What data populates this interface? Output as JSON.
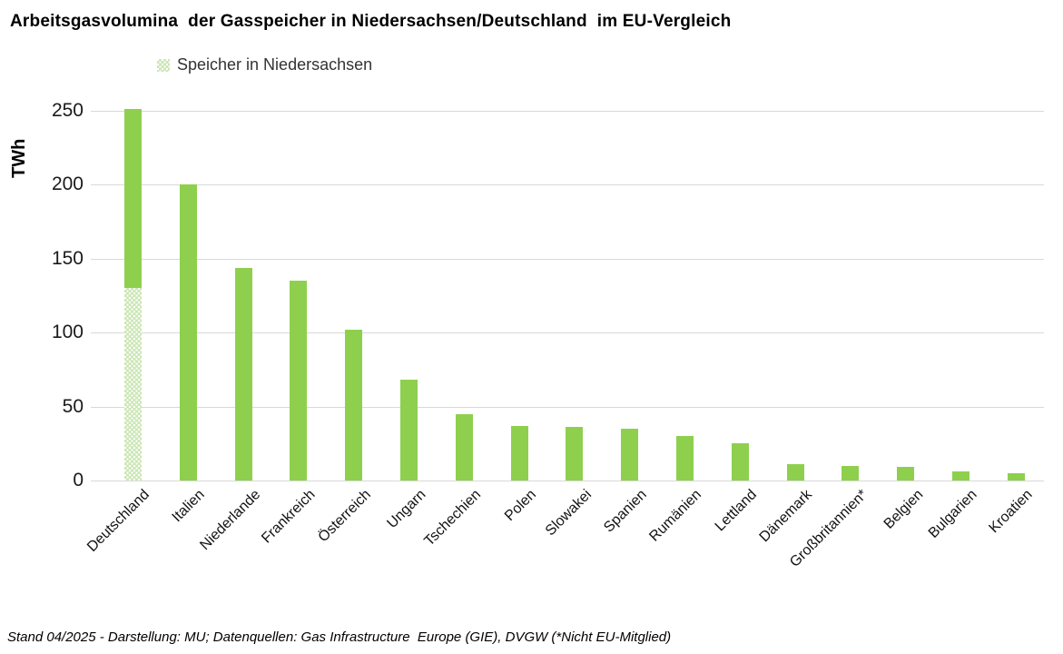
{
  "title": "Arbeitsgasvolumina  der Gasspeicher in Niedersachsen/Deutschland  im EU-Vergleich",
  "legend": {
    "label": "Speicher in Niedersachsen"
  },
  "footer": "Stand 04/2025 - Darstellung: MU; Datenquellen: Gas Infrastructure  Europe (GIE), DVGW (*Nicht EU-Mitglied)",
  "colors": {
    "bar_green": "#8ed04e",
    "hatch_light_green": "#cde7b7",
    "gridline": "#d9d9d9"
  },
  "chart_data": {
    "type": "bar",
    "title": "Arbeitsgasvolumina der Gasspeicher in Niedersachsen/Deutschland im EU-Vergleich",
    "ylabel": "TWh",
    "xlabel": "",
    "unit": "TWh",
    "ylim": [
      0,
      250
    ],
    "yticks": [
      0,
      50,
      100,
      150,
      200,
      250
    ],
    "grid": true,
    "legend_position": "top-left",
    "categories": [
      "Deutschland",
      "Italien",
      "Niederlande",
      "Frankreich",
      "Österreich",
      "Ungarn",
      "Tschechien",
      "Polen",
      "Slowakei",
      "Spanien",
      "Rumänien",
      "Lettland",
      "Dänemark",
      "Großbritannien*",
      "Belgien",
      "Bulgarien",
      "Kroatien"
    ],
    "values": [
      251,
      200,
      144,
      135,
      102,
      68,
      45,
      37,
      36,
      35,
      30,
      25,
      11,
      10,
      9,
      6,
      5
    ],
    "stacked_segment": {
      "label": "Speicher in Niedersachsen",
      "category": "Deutschland",
      "value": 130,
      "style": "hatched"
    },
    "notes": "Deutschland bar = 251 TWh total, of which bottom 130 TWh shown hatched as Speicher in Niedersachsen; *Nicht EU-Mitglied"
  }
}
